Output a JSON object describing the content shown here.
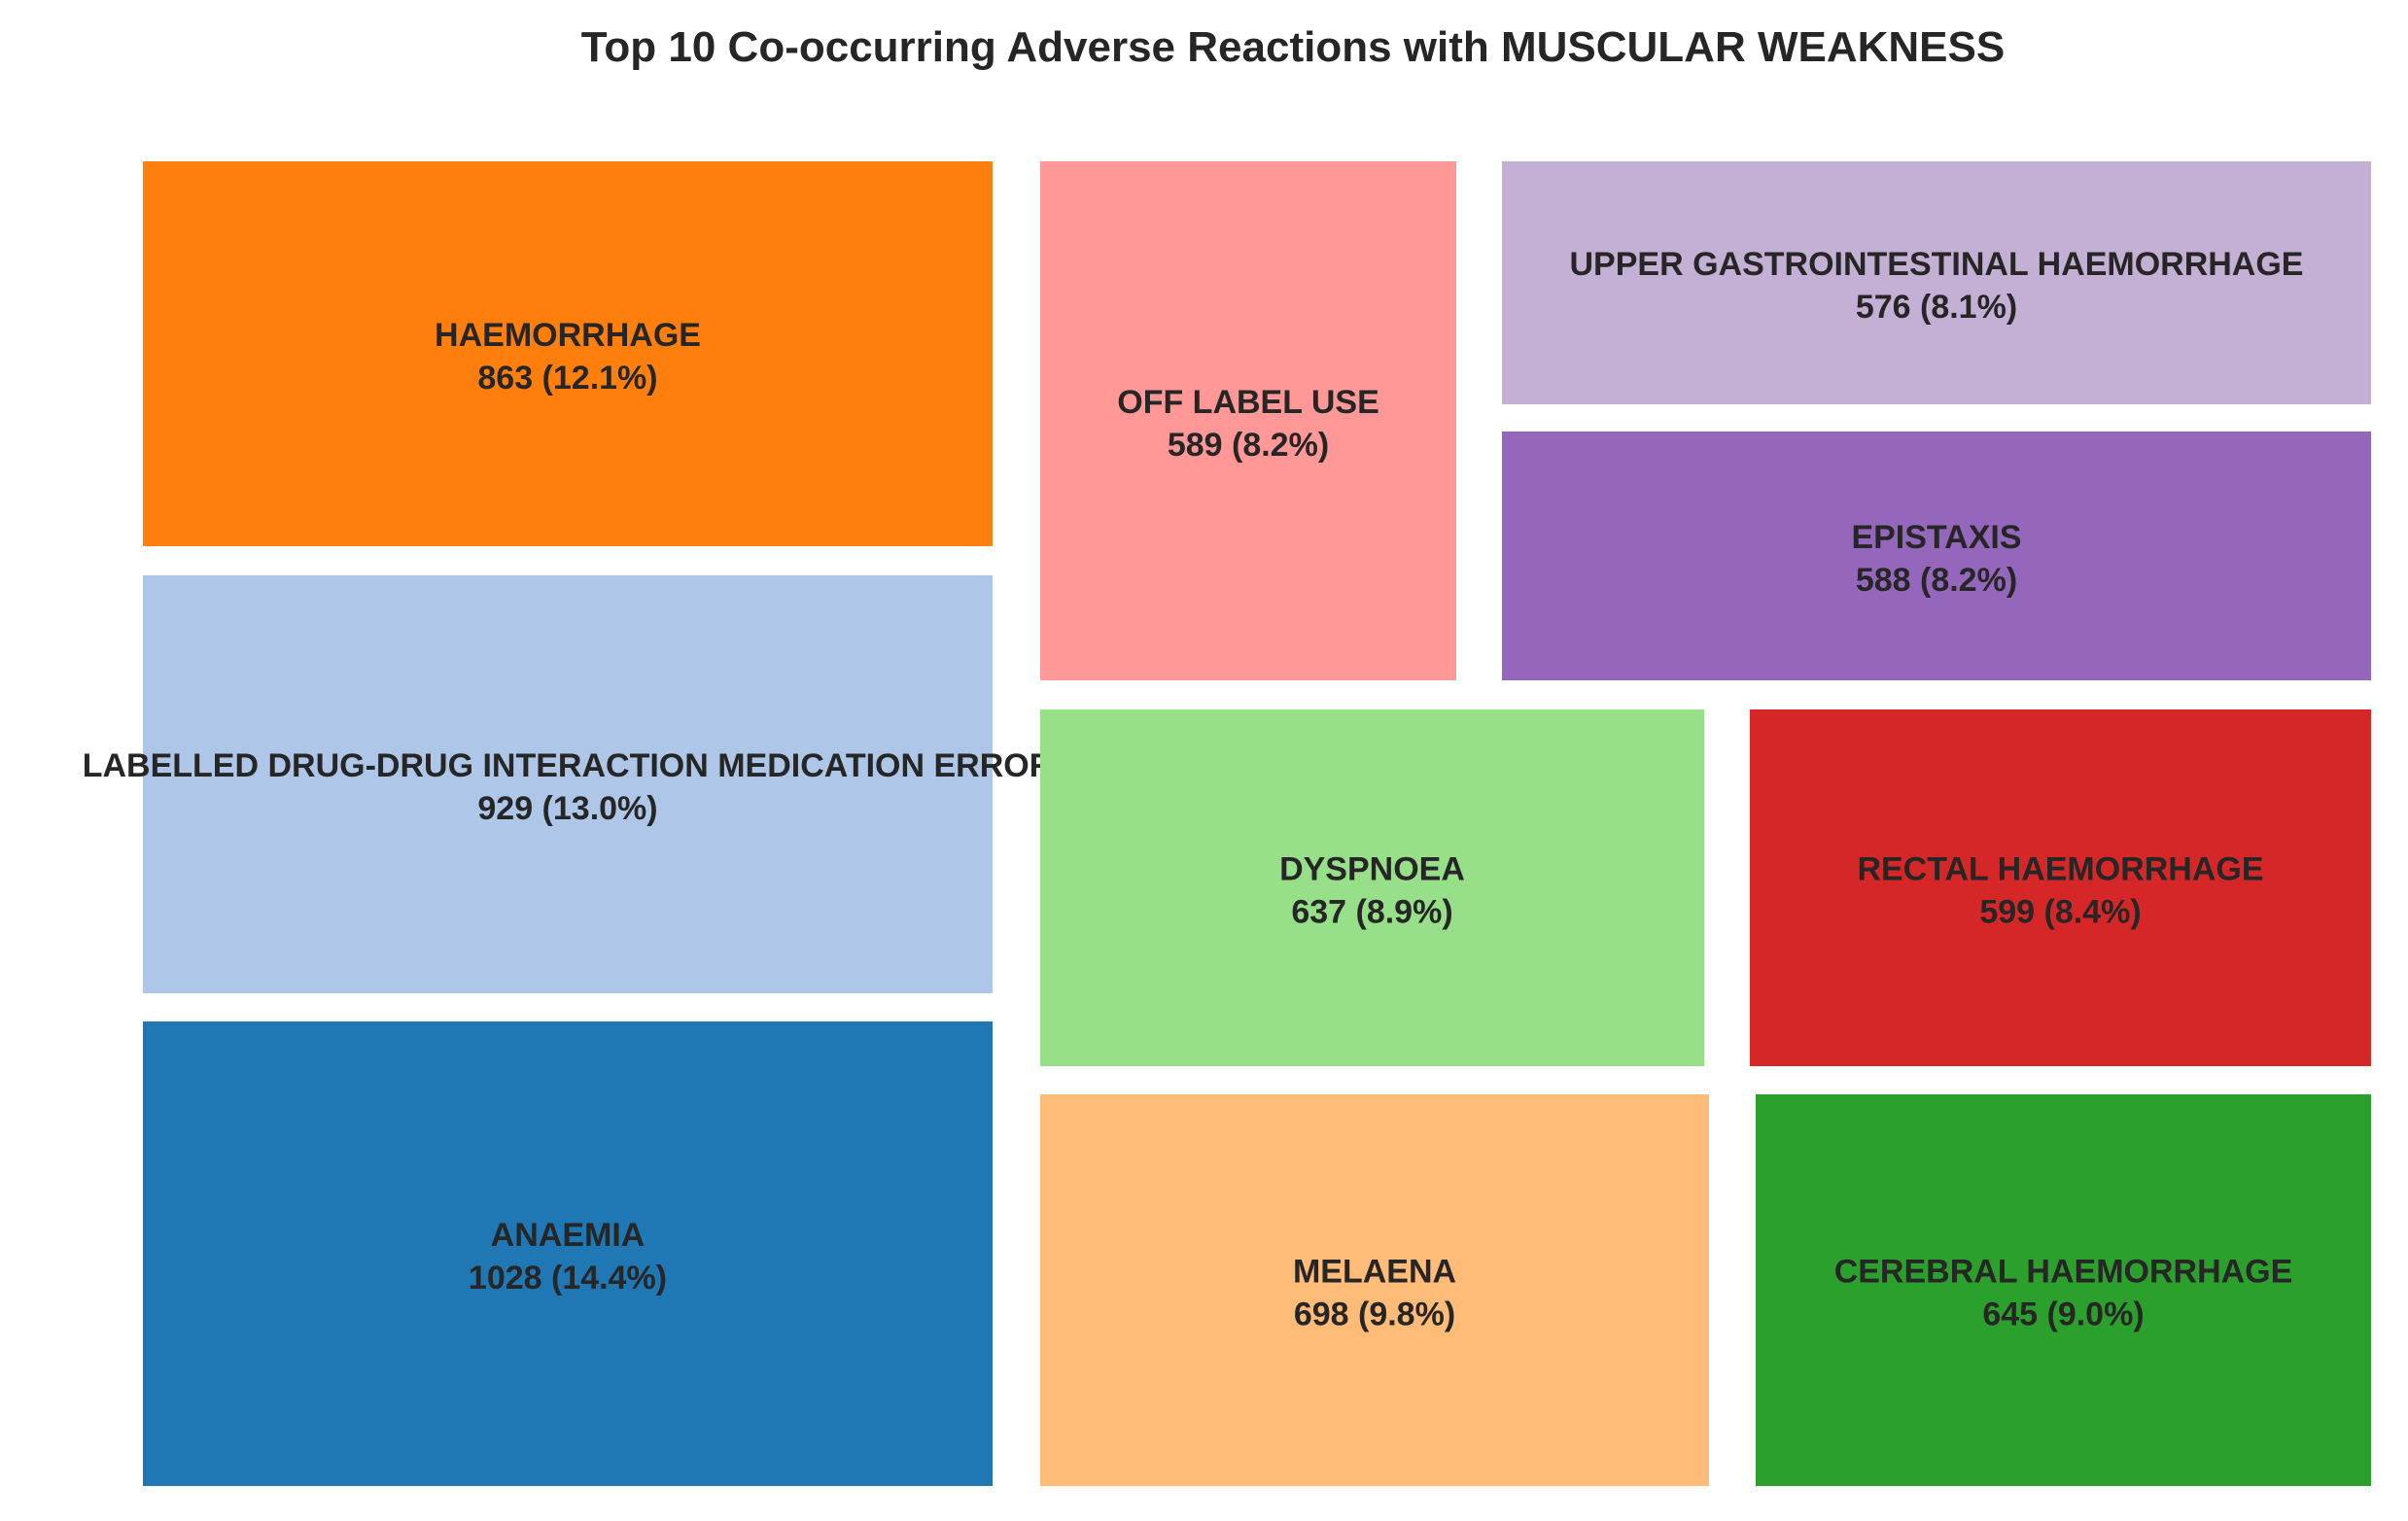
{
  "chart_data": {
    "type": "treemap",
    "title": "Top 10 Co-occurring Adverse Reactions with MUSCULAR WEAKNESS",
    "items": [
      {
        "label": "ANAEMIA",
        "value": 1028,
        "percent": "14.4%",
        "color": "#1f77b4"
      },
      {
        "label": "LABELLED DRUG-DRUG INTERACTION MEDICATION ERROR",
        "value": 929,
        "percent": "13.0%",
        "color": "#aec7e8"
      },
      {
        "label": "HAEMORRHAGE",
        "value": 863,
        "percent": "12.1%",
        "color": "#ff7f0e"
      },
      {
        "label": "MELAENA",
        "value": 698,
        "percent": "9.8%",
        "color": "#ffbb78"
      },
      {
        "label": "CEREBRAL HAEMORRHAGE",
        "value": 645,
        "percent": "9.0%",
        "color": "#2ca02c"
      },
      {
        "label": "DYSPNOEA",
        "value": 637,
        "percent": "8.9%",
        "color": "#98df8a"
      },
      {
        "label": "RECTAL HAEMORRHAGE",
        "value": 599,
        "percent": "8.4%",
        "color": "#d62728"
      },
      {
        "label": "OFF LABEL USE",
        "value": 589,
        "percent": "8.2%",
        "color": "#ff9896"
      },
      {
        "label": "EPISTAXIS",
        "value": 588,
        "percent": "8.2%",
        "color": "#9467bd"
      },
      {
        "label": "UPPER GASTROINTESTINAL HAEMORRHAGE",
        "value": 576,
        "percent": "8.1%",
        "color": "#c5b0d5"
      }
    ]
  }
}
